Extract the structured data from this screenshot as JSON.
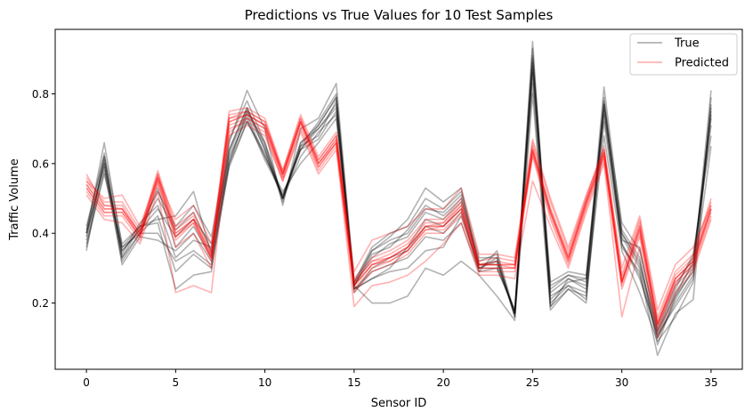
{
  "chart_data": {
    "type": "line",
    "title": "Predictions vs True Values for 10 Test Samples",
    "xlabel": "Sensor ID",
    "ylabel": "Traffic Volume",
    "xlim": [
      -1.75,
      36.75
    ],
    "ylim": [
      0.01,
      0.985
    ],
    "xticks": [
      0,
      5,
      10,
      15,
      20,
      25,
      30,
      35
    ],
    "yticks": [
      0.2,
      0.4,
      0.6,
      0.8
    ],
    "legend_position": "top-right",
    "legend": [
      {
        "label": "True",
        "color": "#000000"
      },
      {
        "label": "Predicted",
        "color": "#ff0000"
      }
    ],
    "x": [
      0,
      1,
      2,
      3,
      4,
      5,
      6,
      7,
      8,
      9,
      10,
      11,
      12,
      13,
      14,
      15,
      16,
      17,
      18,
      19,
      20,
      21,
      22,
      23,
      24,
      25,
      26,
      27,
      28,
      29,
      30,
      31,
      32,
      33,
      34,
      35
    ],
    "true_series": [
      {
        "values": [
          0.35,
          0.62,
          0.33,
          0.42,
          0.43,
          0.24,
          0.28,
          0.29,
          0.6,
          0.75,
          0.66,
          0.5,
          0.66,
          0.71,
          0.79,
          0.24,
          0.27,
          0.29,
          0.3,
          0.35,
          0.36,
          0.45,
          0.3,
          0.3,
          0.18,
          0.93,
          0.2,
          0.25,
          0.21,
          0.79,
          0.36,
          0.29,
          0.05,
          0.17,
          0.21,
          0.79
        ]
      },
      {
        "values": [
          0.4,
          0.66,
          0.36,
          0.4,
          0.53,
          0.36,
          0.42,
          0.33,
          0.66,
          0.81,
          0.7,
          0.48,
          0.7,
          0.73,
          0.83,
          0.26,
          0.35,
          0.39,
          0.44,
          0.53,
          0.49,
          0.53,
          0.3,
          0.33,
          0.16,
          0.95,
          0.19,
          0.27,
          0.25,
          0.82,
          0.41,
          0.33,
          0.08,
          0.22,
          0.29,
          0.81
        ]
      },
      {
        "values": [
          0.38,
          0.6,
          0.34,
          0.43,
          0.48,
          0.33,
          0.38,
          0.36,
          0.62,
          0.73,
          0.61,
          0.51,
          0.64,
          0.67,
          0.75,
          0.24,
          0.29,
          0.31,
          0.33,
          0.39,
          0.38,
          0.43,
          0.29,
          0.35,
          0.17,
          0.86,
          0.22,
          0.25,
          0.23,
          0.72,
          0.37,
          0.27,
          0.11,
          0.19,
          0.27,
          0.65
        ]
      },
      {
        "values": [
          0.36,
          0.58,
          0.32,
          0.4,
          0.4,
          0.32,
          0.35,
          0.31,
          0.59,
          0.72,
          0.62,
          0.52,
          0.6,
          0.66,
          0.73,
          0.25,
          0.2,
          0.2,
          0.22,
          0.3,
          0.28,
          0.32,
          0.28,
          0.22,
          0.15,
          0.8,
          0.18,
          0.24,
          0.22,
          0.68,
          0.35,
          0.23,
          0.09,
          0.16,
          0.26,
          0.74
        ]
      },
      {
        "values": [
          0.41,
          0.63,
          0.37,
          0.42,
          0.52,
          0.42,
          0.48,
          0.39,
          0.67,
          0.78,
          0.66,
          0.5,
          0.65,
          0.72,
          0.8,
          0.26,
          0.36,
          0.4,
          0.42,
          0.5,
          0.47,
          0.52,
          0.33,
          0.33,
          0.17,
          0.91,
          0.26,
          0.29,
          0.28,
          0.78,
          0.43,
          0.35,
          0.13,
          0.25,
          0.33,
          0.71
        ]
      },
      {
        "values": [
          0.39,
          0.61,
          0.35,
          0.41,
          0.47,
          0.39,
          0.44,
          0.37,
          0.64,
          0.76,
          0.64,
          0.5,
          0.66,
          0.7,
          0.77,
          0.25,
          0.33,
          0.37,
          0.39,
          0.46,
          0.44,
          0.49,
          0.31,
          0.31,
          0.17,
          0.88,
          0.24,
          0.28,
          0.26,
          0.76,
          0.4,
          0.32,
          0.11,
          0.23,
          0.31,
          0.73
        ]
      },
      {
        "values": [
          0.42,
          0.62,
          0.33,
          0.4,
          0.45,
          0.29,
          0.34,
          0.3,
          0.63,
          0.75,
          0.64,
          0.49,
          0.65,
          0.68,
          0.78,
          0.23,
          0.3,
          0.33,
          0.35,
          0.42,
          0.4,
          0.46,
          0.3,
          0.32,
          0.17,
          0.9,
          0.23,
          0.27,
          0.24,
          0.77,
          0.39,
          0.3,
          0.1,
          0.2,
          0.28,
          0.77
        ]
      },
      {
        "values": [
          0.37,
          0.57,
          0.36,
          0.42,
          0.44,
          0.45,
          0.52,
          0.34,
          0.6,
          0.72,
          0.63,
          0.5,
          0.62,
          0.69,
          0.74,
          0.25,
          0.34,
          0.36,
          0.41,
          0.48,
          0.45,
          0.5,
          0.32,
          0.34,
          0.16,
          0.83,
          0.21,
          0.26,
          0.27,
          0.74,
          0.38,
          0.36,
          0.12,
          0.24,
          0.34,
          0.68
        ]
      },
      {
        "values": [
          0.4,
          0.6,
          0.31,
          0.39,
          0.38,
          0.35,
          0.4,
          0.32,
          0.61,
          0.74,
          0.62,
          0.51,
          0.64,
          0.7,
          0.76,
          0.24,
          0.27,
          0.3,
          0.36,
          0.44,
          0.42,
          0.47,
          0.29,
          0.3,
          0.18,
          0.87,
          0.19,
          0.24,
          0.2,
          0.75,
          0.37,
          0.28,
          0.1,
          0.21,
          0.3,
          0.76
        ]
      },
      {
        "values": [
          0.4,
          0.59,
          0.35,
          0.41,
          0.5,
          0.41,
          0.46,
          0.35,
          0.64,
          0.76,
          0.65,
          0.5,
          0.64,
          0.71,
          0.79,
          0.25,
          0.35,
          0.38,
          0.4,
          0.47,
          0.46,
          0.51,
          0.31,
          0.32,
          0.17,
          0.89,
          0.25,
          0.28,
          0.27,
          0.77,
          0.4,
          0.31,
          0.12,
          0.22,
          0.32,
          0.75
        ]
      }
    ],
    "predicted_series": [
      {
        "values": [
          0.54,
          0.47,
          0.47,
          0.4,
          0.57,
          0.4,
          0.44,
          0.33,
          0.72,
          0.74,
          0.71,
          0.57,
          0.72,
          0.6,
          0.67,
          0.25,
          0.31,
          0.33,
          0.36,
          0.42,
          0.42,
          0.47,
          0.31,
          0.31,
          0.31,
          0.64,
          0.46,
          0.33,
          0.49,
          0.63,
          0.26,
          0.41,
          0.14,
          0.27,
          0.32,
          0.47
        ]
      },
      {
        "values": [
          0.56,
          0.49,
          0.49,
          0.41,
          0.58,
          0.42,
          0.46,
          0.35,
          0.75,
          0.76,
          0.73,
          0.58,
          0.74,
          0.62,
          0.69,
          0.27,
          0.33,
          0.35,
          0.38,
          0.44,
          0.44,
          0.5,
          0.32,
          0.33,
          0.32,
          0.66,
          0.49,
          0.35,
          0.5,
          0.65,
          0.28,
          0.44,
          0.16,
          0.29,
          0.34,
          0.5
        ]
      },
      {
        "values": [
          0.52,
          0.45,
          0.45,
          0.38,
          0.55,
          0.38,
          0.43,
          0.32,
          0.7,
          0.72,
          0.69,
          0.55,
          0.7,
          0.58,
          0.65,
          0.23,
          0.29,
          0.31,
          0.34,
          0.4,
          0.4,
          0.45,
          0.29,
          0.29,
          0.29,
          0.62,
          0.44,
          0.31,
          0.47,
          0.61,
          0.24,
          0.39,
          0.12,
          0.25,
          0.3,
          0.45
        ]
      },
      {
        "values": [
          0.55,
          0.5,
          0.51,
          0.42,
          0.56,
          0.44,
          0.48,
          0.37,
          0.73,
          0.75,
          0.72,
          0.57,
          0.72,
          0.61,
          0.68,
          0.29,
          0.38,
          0.4,
          0.42,
          0.47,
          0.47,
          0.53,
          0.34,
          0.34,
          0.33,
          0.67,
          0.5,
          0.36,
          0.51,
          0.64,
          0.3,
          0.45,
          0.18,
          0.31,
          0.36,
          0.48
        ]
      },
      {
        "values": [
          0.53,
          0.46,
          0.46,
          0.39,
          0.54,
          0.36,
          0.4,
          0.3,
          0.69,
          0.73,
          0.7,
          0.56,
          0.71,
          0.59,
          0.66,
          0.24,
          0.3,
          0.32,
          0.35,
          0.41,
          0.41,
          0.46,
          0.3,
          0.3,
          0.3,
          0.63,
          0.45,
          0.32,
          0.48,
          0.62,
          0.25,
          0.4,
          0.13,
          0.26,
          0.31,
          0.46
        ]
      },
      {
        "values": [
          0.57,
          0.48,
          0.48,
          0.4,
          0.57,
          0.41,
          0.45,
          0.34,
          0.74,
          0.75,
          0.72,
          0.58,
          0.73,
          0.61,
          0.68,
          0.26,
          0.32,
          0.34,
          0.37,
          0.43,
          0.43,
          0.49,
          0.31,
          0.32,
          0.31,
          0.65,
          0.47,
          0.34,
          0.5,
          0.64,
          0.27,
          0.43,
          0.15,
          0.28,
          0.33,
          0.49
        ]
      },
      {
        "values": [
          0.51,
          0.44,
          0.43,
          0.37,
          0.52,
          0.23,
          0.25,
          0.23,
          0.68,
          0.71,
          0.68,
          0.55,
          0.69,
          0.57,
          0.64,
          0.19,
          0.25,
          0.26,
          0.28,
          0.32,
          0.37,
          0.43,
          0.28,
          0.28,
          0.27,
          0.55,
          0.42,
          0.3,
          0.46,
          0.6,
          0.16,
          0.36,
          0.1,
          0.23,
          0.29,
          0.44
        ]
      },
      {
        "values": [
          0.54,
          0.47,
          0.47,
          0.39,
          0.56,
          0.39,
          0.44,
          0.33,
          0.72,
          0.74,
          0.71,
          0.57,
          0.72,
          0.6,
          0.66,
          0.25,
          0.31,
          0.33,
          0.36,
          0.42,
          0.42,
          0.48,
          0.31,
          0.31,
          0.3,
          0.64,
          0.46,
          0.33,
          0.49,
          0.63,
          0.26,
          0.42,
          0.14,
          0.27,
          0.32,
          0.47
        ]
      },
      {
        "values": [
          0.55,
          0.48,
          0.47,
          0.4,
          0.56,
          0.4,
          0.44,
          0.34,
          0.73,
          0.74,
          0.71,
          0.57,
          0.73,
          0.6,
          0.67,
          0.26,
          0.32,
          0.33,
          0.36,
          0.42,
          0.43,
          0.48,
          0.31,
          0.31,
          0.31,
          0.64,
          0.47,
          0.33,
          0.49,
          0.63,
          0.26,
          0.42,
          0.14,
          0.27,
          0.32,
          0.48
        ]
      },
      {
        "values": [
          0.53,
          0.46,
          0.46,
          0.39,
          0.55,
          0.39,
          0.43,
          0.33,
          0.71,
          0.73,
          0.7,
          0.56,
          0.72,
          0.59,
          0.66,
          0.25,
          0.31,
          0.32,
          0.35,
          0.41,
          0.42,
          0.47,
          0.3,
          0.3,
          0.3,
          0.63,
          0.46,
          0.32,
          0.48,
          0.62,
          0.26,
          0.41,
          0.14,
          0.26,
          0.31,
          0.47
        ]
      }
    ]
  }
}
